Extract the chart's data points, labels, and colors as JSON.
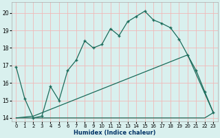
{
  "xlabel": "Humidex (Indice chaleur)",
  "xlim": [
    -0.5,
    23.5
  ],
  "ylim": [
    13.8,
    20.6
  ],
  "yticks": [
    14,
    15,
    16,
    17,
    18,
    19,
    20
  ],
  "xticks": [
    0,
    1,
    2,
    3,
    4,
    5,
    6,
    7,
    8,
    9,
    10,
    11,
    12,
    13,
    14,
    15,
    16,
    17,
    18,
    19,
    20,
    21,
    22,
    23
  ],
  "bg_color": "#d9f0ee",
  "grid_color": "#f0b8b8",
  "line_color": "#1a6b5a",
  "line1_x": [
    0,
    1,
    2,
    3,
    4,
    5,
    6,
    7,
    8,
    9,
    10,
    11,
    12,
    13,
    14,
    15,
    16,
    17,
    18,
    19,
    20,
    21,
    22,
    23
  ],
  "line1_y": [
    16.9,
    15.1,
    14.0,
    14.1,
    15.8,
    15.0,
    16.7,
    17.3,
    18.4,
    18.0,
    18.2,
    19.1,
    18.7,
    19.5,
    19.8,
    20.1,
    19.6,
    19.4,
    19.15,
    18.5,
    17.6,
    16.7,
    15.5,
    14.3
  ],
  "line2_x": [
    0,
    2,
    22,
    23
  ],
  "line2_y": [
    14.0,
    14.0,
    14.0,
    14.3
  ],
  "line3_x": [
    0,
    2,
    20,
    23
  ],
  "line3_y": [
    14.0,
    14.1,
    17.6,
    14.3
  ]
}
